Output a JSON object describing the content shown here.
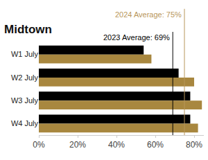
{
  "chart_data": {
    "type": "bar",
    "title": "Midtown",
    "orientation": "horizontal",
    "categories": [
      "W1 July",
      "W2 July",
      "W3 July",
      "W4 July"
    ],
    "series": [
      {
        "color": "#000000",
        "values": [
          54,
          72,
          78,
          78
        ]
      },
      {
        "color": "#a8873f",
        "values": [
          58,
          80,
          84,
          82
        ]
      }
    ],
    "xlim": [
      0,
      85
    ],
    "xticks": [
      {
        "value": 0,
        "label": "0%"
      },
      {
        "value": 20,
        "label": "20%"
      },
      {
        "value": 40,
        "label": "40%"
      },
      {
        "value": 60,
        "label": "60%"
      },
      {
        "value": 80,
        "label": "80%"
      }
    ],
    "grid": false,
    "reference_lines": [
      {
        "label": "2023 Average: 69%",
        "value": 69,
        "color": "#000000"
      },
      {
        "label": "2024 Average: 75%",
        "value": 75,
        "color": "#b8965a"
      }
    ]
  }
}
